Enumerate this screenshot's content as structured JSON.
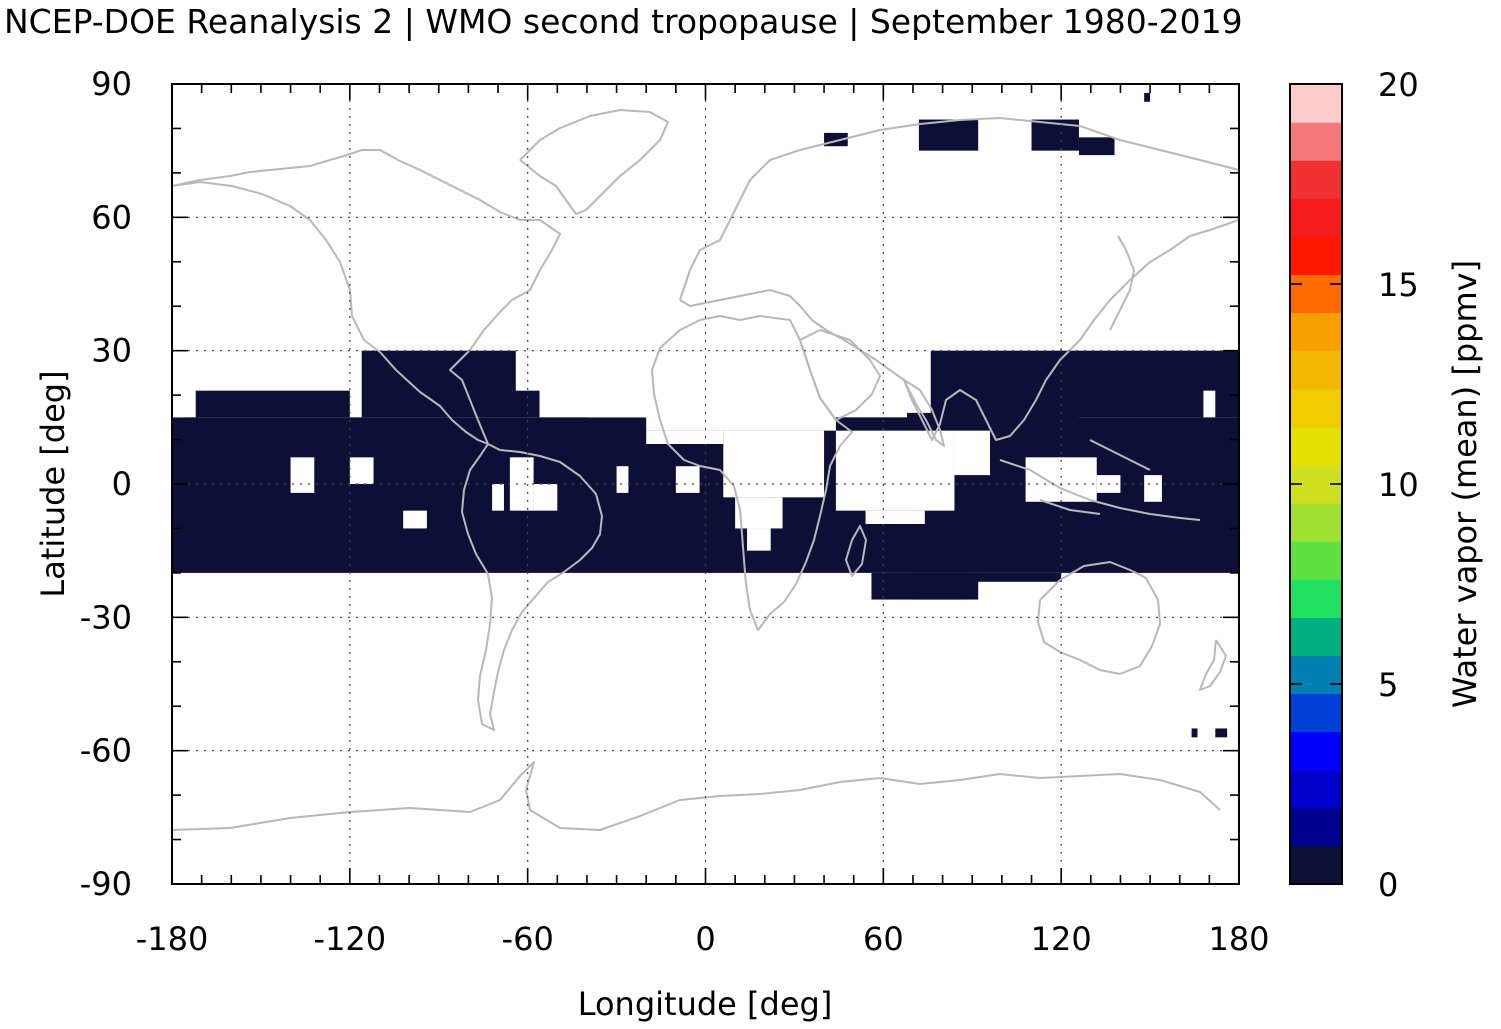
{
  "title": "NCEP-DOE Reanalysis 2 | WMO second tropopause | September 1980-2019",
  "chart_data": {
    "type": "heatmap",
    "x_axis": {
      "label": "Longitude [deg]",
      "range": [
        -180,
        180
      ],
      "ticks": [
        -180,
        -120,
        -60,
        0,
        60,
        120,
        180
      ],
      "tick_labels": [
        "-180",
        "-120",
        "-60",
        "0",
        "60",
        "120",
        "180"
      ],
      "minor_step": 10
    },
    "y_axis": {
      "label": "Latitude [deg]",
      "range": [
        -90,
        90
      ],
      "ticks": [
        -90,
        -60,
        -30,
        0,
        30,
        60,
        90
      ],
      "tick_labels": [
        "-90",
        "-60",
        "-30",
        "0",
        "30",
        "60",
        "90"
      ],
      "minor_step": 10
    },
    "grid": true,
    "colorbar": {
      "label": "Water vapor (mean) [ppmv]",
      "range": [
        0,
        20
      ],
      "ticks": [
        0,
        5,
        10,
        15,
        20
      ],
      "tick_labels": [
        "0",
        "5",
        "10",
        "15",
        "20"
      ],
      "colors": [
        "#0e0f36",
        "#00008f",
        "#0000cc",
        "#0000ff",
        "#0040d8",
        "#0080b0",
        "#00b080",
        "#20e060",
        "#60e040",
        "#a0e030",
        "#d0e020",
        "#e6e000",
        "#f0cc00",
        "#f4b800",
        "#f8a000",
        "#ff6a00",
        "#ff1800",
        "#f41c1c",
        "#ee3030",
        "#f47878",
        "#ffcccc"
      ]
    },
    "cell_size_deg": [
      4,
      3
    ],
    "field_color": "#0e0f36",
    "regions": [
      {
        "value": 0.5,
        "lon": [
          -180,
          180
        ],
        "lat": [
          -20,
          15
        ]
      },
      {
        "value": 0.5,
        "lon": [
          -172,
          -120
        ],
        "lat": [
          15,
          21
        ]
      },
      {
        "value": 0.5,
        "lon": [
          -116,
          -56
        ],
        "lat": [
          15,
          30
        ]
      },
      {
        "value": 0.5,
        "lon": [
          76,
          180
        ],
        "lat": [
          15,
          30
        ]
      },
      {
        "value": 0.5,
        "lon": [
          56,
          88
        ],
        "lat": [
          -26,
          -20
        ]
      },
      {
        "value": 0.5,
        "lon": [
          70,
          120
        ],
        "lat": [
          -22,
          -20
        ]
      },
      {
        "value": 0.5,
        "lon": [
          92,
          126
        ],
        "lat": [
          -10,
          18
        ]
      },
      {
        "value": 0.5,
        "lon": [
          68,
          100
        ],
        "lat": [
          12,
          16
        ]
      },
      {
        "value": 0.5,
        "lon": [
          70,
          92
        ],
        "lat": [
          -26,
          -20
        ]
      },
      {
        "value": 0.5,
        "lon": [
          72,
          92
        ],
        "lat": [
          75,
          82
        ]
      },
      {
        "value": 0.5,
        "lon": [
          110,
          126
        ],
        "lat": [
          75,
          82
        ]
      },
      {
        "value": 0.5,
        "lon": [
          126,
          138
        ],
        "lat": [
          74,
          78
        ]
      },
      {
        "value": 0.5,
        "lon": [
          40,
          48
        ],
        "lat": [
          76,
          79
        ]
      },
      {
        "value": 0.5,
        "lon": [
          148,
          150
        ],
        "lat": [
          86,
          88
        ]
      },
      {
        "value": 0.5,
        "lon": [
          164,
          166
        ],
        "lat": [
          -57,
          -55
        ]
      },
      {
        "value": 0.5,
        "lon": [
          172,
          176
        ],
        "lat": [
          -57,
          -55
        ]
      }
    ],
    "gaps": [
      {
        "lon": [
          -140,
          -132
        ],
        "lat": [
          -2,
          6
        ]
      },
      {
        "lon": [
          -120,
          -112
        ],
        "lat": [
          0,
          6
        ]
      },
      {
        "lon": [
          -102,
          -94
        ],
        "lat": [
          -10,
          -6
        ]
      },
      {
        "lon": [
          -72,
          -68
        ],
        "lat": [
          -6,
          0
        ]
      },
      {
        "lon": [
          -66,
          -58
        ],
        "lat": [
          -6,
          6
        ]
      },
      {
        "lon": [
          -58,
          -50
        ],
        "lat": [
          -6,
          0
        ]
      },
      {
        "lon": [
          -30,
          -26
        ],
        "lat": [
          -2,
          4
        ]
      },
      {
        "lon": [
          -10,
          -2
        ],
        "lat": [
          -2,
          4
        ]
      },
      {
        "lon": [
          -64,
          -54
        ],
        "lat": [
          21,
          30
        ]
      },
      {
        "lon": [
          -40,
          -20
        ],
        "lat": [
          15,
          24
        ]
      },
      {
        "lon": [
          -20,
          44
        ],
        "lat": [
          12,
          30
        ]
      },
      {
        "lon": [
          -20,
          6
        ],
        "lat": [
          9,
          12
        ]
      },
      {
        "lon": [
          6,
          40
        ],
        "lat": [
          -3,
          12
        ]
      },
      {
        "lon": [
          10,
          26
        ],
        "lat": [
          -10,
          -3
        ]
      },
      {
        "lon": [
          14,
          22
        ],
        "lat": [
          -15,
          -10
        ]
      },
      {
        "lon": [
          44,
          84
        ],
        "lat": [
          -6,
          12
        ]
      },
      {
        "lon": [
          54,
          74
        ],
        "lat": [
          -9,
          -6
        ]
      },
      {
        "lon": [
          84,
          96
        ],
        "lat": [
          2,
          12
        ]
      },
      {
        "lon": [
          108,
          132
        ],
        "lat": [
          -4,
          6
        ]
      },
      {
        "lon": [
          132,
          140
        ],
        "lat": [
          -2,
          2
        ]
      },
      {
        "lon": [
          148,
          154
        ],
        "lat": [
          -4,
          2
        ]
      },
      {
        "lon": [
          168,
          172
        ],
        "lat": [
          15,
          21
        ]
      },
      {
        "lon": [
          -180,
          -176
        ],
        "lat": [
          15,
          21
        ]
      }
    ]
  }
}
